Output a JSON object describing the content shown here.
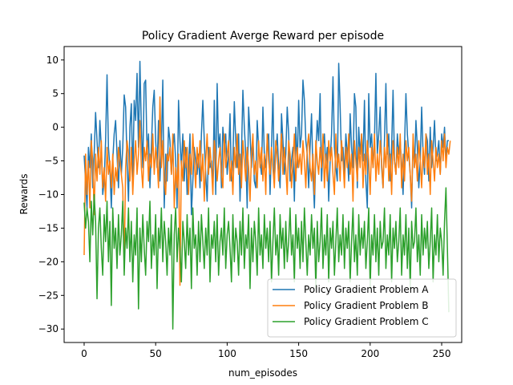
{
  "chart_data": {
    "type": "line",
    "title": "Policy Gradient Averge Reward per episode",
    "xlabel": "num_episodes",
    "ylabel": "Rewards",
    "xlim": [
      -14,
      264
    ],
    "ylim": [
      -32,
      12
    ],
    "xticks": [
      0,
      50,
      100,
      150,
      200,
      250
    ],
    "yticks": [
      -30,
      -25,
      -20,
      -15,
      -10,
      -5,
      0,
      5,
      10
    ],
    "grid": false,
    "legend_position": "lower-right",
    "series": [
      {
        "name": "Policy Gradient  Problem A",
        "color": "#1f77b4",
        "values": [
          -4.2,
          -8,
          -12,
          -3,
          -6,
          -1,
          -9,
          -4,
          2.2,
          -2,
          -6,
          1,
          -3,
          -10,
          -8,
          -2,
          7.8,
          -3,
          -6,
          -12,
          -5,
          -1,
          1,
          -4,
          -9,
          -2,
          -7,
          -3,
          4.8,
          3,
          -5,
          -11,
          0,
          3.5,
          -8,
          4,
          1,
          8,
          -3,
          9.8,
          0,
          -6,
          6.5,
          7,
          -4,
          -1,
          -9,
          -3,
          3,
          5.5,
          -2,
          -6,
          1,
          -8,
          -3,
          7,
          -12,
          -4,
          -8,
          0,
          -2,
          -7,
          -3,
          -1,
          -5,
          -12,
          4,
          -2,
          -6,
          -1,
          -8,
          -3,
          -10,
          -6,
          -1,
          -13,
          -8,
          -3,
          -5,
          -7,
          -4,
          -9,
          -1,
          4,
          -2,
          -7,
          -11,
          -3,
          -6,
          -5,
          -9,
          4,
          -10,
          6.5,
          -3,
          -1,
          -9,
          0,
          -3,
          -1,
          -7,
          -4,
          2,
          -8,
          -5,
          3.8,
          -2,
          -6,
          -1,
          -11,
          -4,
          5.5,
          0,
          -4,
          -12,
          3,
          -1,
          -6,
          -2,
          -8,
          -9,
          1,
          -3,
          -5,
          -7,
          3,
          -4,
          -6,
          -2,
          -1,
          -10,
          -3,
          5,
          -8,
          -4,
          -1,
          -6,
          -9,
          2,
          -2,
          -7,
          -4,
          3,
          -1,
          -8,
          -5,
          -3,
          -11,
          0,
          -6,
          4,
          -3,
          -1,
          7,
          4,
          -2,
          -4,
          -9,
          -3,
          2,
          -7,
          -12,
          -4,
          1,
          -2,
          5,
          -8,
          -3,
          -1,
          -6,
          -3,
          -11,
          -5,
          -1,
          7.5,
          -3,
          -6,
          -8,
          9.5,
          3,
          -5,
          -3,
          -7,
          -1,
          -4,
          -8,
          2,
          -3,
          -6,
          5,
          3,
          -9,
          0,
          -4,
          -1,
          -5,
          4,
          -8,
          -12,
          5,
          -3,
          -1,
          -6,
          -2,
          8,
          -4,
          -1,
          3,
          -6,
          -9,
          -2,
          6.5,
          -4,
          -1,
          -8,
          -3,
          5.5,
          -5,
          -7,
          -1,
          -4,
          -2,
          -6,
          -10,
          -3,
          5,
          -1,
          -4,
          -7,
          -12,
          -2,
          -6,
          1,
          -3,
          -9,
          -5,
          3,
          -4,
          -7,
          -1,
          -2,
          -8,
          0,
          -6,
          -3,
          1,
          -5,
          -4,
          -2,
          -7,
          -1,
          -3,
          0,
          -5,
          -2,
          -2
        ]
      },
      {
        "name": "Policy Gradient  Problem B",
        "color": "#ff7f0e",
        "values": [
          -19,
          -4,
          -10,
          -5,
          -12,
          -2,
          -5,
          -13,
          -4,
          -8,
          -3,
          -7,
          -2,
          -9,
          -6,
          -11,
          -3,
          -7,
          -5,
          -9,
          -4,
          -10,
          -6,
          -8,
          -3,
          -5,
          -7,
          -9,
          -21,
          -6,
          -2,
          -4,
          -8,
          -3,
          -10,
          -5,
          -2,
          -7,
          -4,
          1,
          -6,
          -9,
          -3,
          -5,
          -2,
          -8,
          -4,
          -6,
          -1,
          -7,
          -3,
          -5,
          -9,
          4.5,
          -6,
          -2,
          -8,
          -10,
          -4,
          -5,
          -3,
          -7,
          -1,
          -12,
          -6,
          -9,
          -4,
          -23.5,
          -5,
          -8,
          -2,
          -6,
          -3,
          -10,
          -4,
          -7,
          -1,
          -5,
          -9,
          -3,
          -6,
          -2,
          -8,
          -4,
          -11,
          -5,
          -1,
          -7,
          -3,
          -6,
          -10,
          -2,
          -4,
          -8,
          -5,
          -3,
          -7,
          -9,
          -1,
          -6,
          -4,
          -2,
          -8,
          -5,
          -10,
          -3,
          -6,
          -1,
          -7,
          -4,
          -9,
          -2,
          -5,
          -8,
          -3,
          -6,
          -11,
          -4,
          -1,
          -7,
          -5,
          -9,
          -2,
          -6,
          -3,
          -8,
          -4,
          -10,
          -1,
          -5,
          -7,
          -3,
          -6,
          -9,
          -2,
          -4,
          -8,
          -5,
          -1,
          -7,
          -3,
          -6,
          -10,
          -2,
          -4,
          -9,
          -5,
          -1,
          -8,
          -3,
          -6,
          -4,
          -7,
          -2,
          -5,
          -9,
          -3,
          -1,
          -6,
          -8,
          -4,
          -10,
          -2,
          -5,
          -7,
          -3,
          -6,
          -1,
          -9,
          -4,
          -8,
          -2,
          -5,
          -3,
          -7,
          -10,
          -1,
          -6,
          -4,
          -8,
          -2,
          -5,
          -9,
          -3,
          -6,
          -1,
          -7,
          -4,
          -11,
          -2,
          -5,
          -8,
          -3,
          -6,
          -1,
          -9,
          -4,
          -7,
          -2,
          -5,
          -10,
          -3,
          -6,
          -1,
          -8,
          -4,
          -7,
          -2,
          -5,
          -9,
          -3,
          -6,
          -1,
          -8,
          -4,
          -10,
          -2,
          -5,
          -7,
          -3,
          -6,
          -1,
          -9,
          -4,
          -8,
          -2,
          -5,
          -3,
          -7,
          -11,
          -1,
          -6,
          -4,
          -8,
          -2,
          -5,
          -9,
          -3,
          -6,
          -1,
          -7,
          -4,
          -10,
          -2,
          -5,
          -8,
          -3,
          -6,
          -4,
          -7,
          -2,
          -5,
          -1,
          -6,
          -3,
          -4,
          -2
        ]
      },
      {
        "name": "Policy Gradient Problem C",
        "color": "#2ca02c",
        "values": [
          -11.2,
          -15,
          -12,
          -14,
          -20,
          -11,
          -16,
          -10,
          -14,
          -25.5,
          -15,
          -12,
          -18,
          -22,
          -13,
          -17,
          -11,
          -20,
          -14,
          -26.5,
          -12,
          -18,
          -15,
          -21,
          -13,
          -19,
          -16,
          -11,
          -22,
          -15,
          -18,
          -12,
          -20,
          -14,
          -23,
          -16,
          -19,
          -12,
          -27,
          -15,
          -20,
          -13,
          -18,
          -22,
          -14,
          -17,
          -11,
          -21,
          -16,
          -19,
          -13,
          -24,
          -15,
          -18,
          -12,
          -20,
          -14,
          -17,
          -22,
          -15,
          -19,
          -13,
          -30,
          -16,
          -12,
          -20,
          -15,
          -18,
          -23,
          -14,
          -17,
          -21,
          -13,
          -19,
          -15,
          -24,
          -12,
          -18,
          -16,
          -22,
          -14,
          -20,
          -13,
          -17,
          -21,
          -15,
          -19,
          -12,
          -23,
          -16,
          -18,
          -14,
          -20,
          -13,
          -22,
          -17,
          -15,
          -19,
          -12,
          -21,
          -16,
          -14,
          -18,
          -23,
          -13,
          -20,
          -15,
          -17,
          -22,
          -14,
          -19,
          -12,
          -21,
          -16,
          -18,
          -13,
          -24,
          -15,
          -20,
          -14,
          -17,
          -22,
          -12,
          -19,
          -16,
          -21,
          -13,
          -18,
          -15,
          -20,
          -14,
          -23,
          -17,
          -12,
          -19,
          -16,
          -22,
          -13,
          -18,
          -15,
          -21,
          -14,
          -20,
          -17,
          -12,
          -19,
          -16,
          -23,
          -13,
          -18,
          -15,
          -21,
          -14,
          -20,
          -12,
          -17,
          -22,
          -16,
          -19,
          -13,
          -18,
          -15,
          -24,
          -14,
          -20,
          -17,
          -12,
          -21,
          -16,
          -19,
          -13,
          -23,
          -15,
          -18,
          -14,
          -22,
          -17,
          -12,
          -20,
          -16,
          -19,
          -13,
          -21,
          -15,
          -18,
          -14,
          -23,
          -17,
          -12,
          -20,
          -16,
          -22,
          -13,
          -19,
          -15,
          -18,
          -14,
          -21,
          -17,
          -12,
          -24,
          -16,
          -19,
          -13,
          -20,
          -15,
          -22,
          -14,
          -18,
          -17,
          -12,
          -21,
          -16,
          -19,
          -13,
          -23,
          -15,
          -18,
          -14,
          -20,
          -17,
          -12,
          -22,
          -16,
          -19,
          -13,
          -21,
          -15,
          -24,
          -14,
          -18,
          -17,
          -12,
          -20,
          -16,
          -22,
          -13,
          -19,
          -15,
          -18,
          -14,
          -21,
          -17,
          -12,
          -23,
          -16,
          -19,
          -13,
          -20,
          -15,
          -17,
          -22,
          -14,
          -9,
          -18,
          -27.5
        ]
      }
    ]
  }
}
